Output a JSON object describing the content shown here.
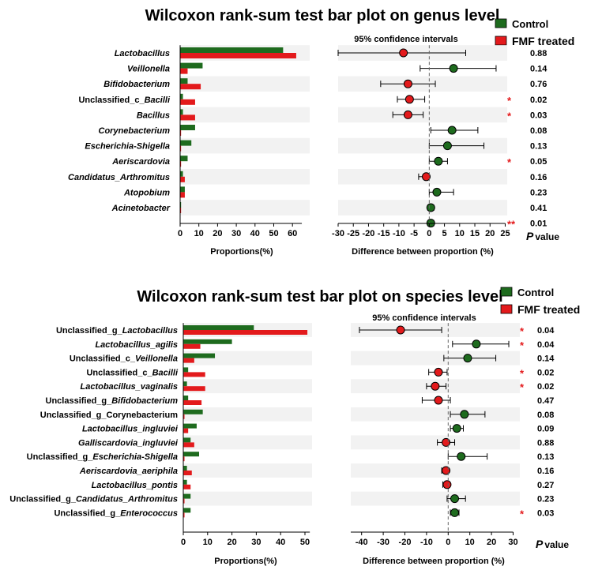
{
  "colors": {
    "control": "#1e6b1e",
    "treated": "#e31a1c",
    "stripe": "#f2f2f2",
    "star": "#e31a1c"
  },
  "legend": {
    "control": "Control",
    "treated": "FMF treated"
  },
  "ci_label": "95% confidence intervals",
  "x_label_left": "Proportions(%)",
  "x_label_right": "Difference between proportion (%)",
  "pvalue_label": {
    "p": "P",
    "rest": "value"
  },
  "chart_data": [
    {
      "type": "bar",
      "title": "Wilcoxon rank-sum test bar plot on genus level",
      "xlabel": "Proportions(%)",
      "xlim": [
        0,
        65
      ],
      "xticks": [
        0,
        10,
        20,
        30,
        40,
        50,
        60
      ],
      "rows": [
        {
          "label": [
            {
              "t": "Lactobacillus",
              "i": true
            }
          ],
          "control": 55,
          "treated": 62,
          "diff": -8.5,
          "lo": -30,
          "hi": 12,
          "p": "0.88",
          "star": ""
        },
        {
          "label": [
            {
              "t": "Veillonella",
              "i": true
            }
          ],
          "control": 12,
          "treated": 4,
          "diff": 8,
          "lo": -3,
          "hi": 22,
          "p": "0.14",
          "star": ""
        },
        {
          "label": [
            {
              "t": "Bifidobacterium",
              "i": true
            }
          ],
          "control": 4,
          "treated": 11,
          "diff": -7,
          "lo": -16,
          "hi": 2,
          "p": "0.76",
          "star": ""
        },
        {
          "label": [
            {
              "t": "Unclassified_c_",
              "i": false
            },
            {
              "t": "Bacilli",
              "i": true
            }
          ],
          "control": 1.5,
          "treated": 8,
          "diff": -6.5,
          "lo": -10.5,
          "hi": -1.5,
          "p": "0.02",
          "star": "*"
        },
        {
          "label": [
            {
              "t": "Bacillus",
              "i": true
            }
          ],
          "control": 1.5,
          "treated": 8,
          "diff": -7,
          "lo": -12,
          "hi": -2,
          "p": "0.03",
          "star": "*"
        },
        {
          "label": [
            {
              "t": "Corynebacterium",
              "i": true
            }
          ],
          "control": 8,
          "treated": 0.5,
          "diff": 7.5,
          "lo": 0.5,
          "hi": 16,
          "p": "0.08",
          "star": ""
        },
        {
          "label": [
            {
              "t": "Escherichia-Shigella",
              "i": true
            }
          ],
          "control": 6,
          "treated": 0.5,
          "diff": 6,
          "lo": 0,
          "hi": 18,
          "p": "0.13",
          "star": ""
        },
        {
          "label": [
            {
              "t": "Aeriscardovia",
              "i": true
            }
          ],
          "control": 4,
          "treated": 0.5,
          "diff": 3,
          "lo": 0,
          "hi": 6,
          "p": "0.05",
          "star": "*"
        },
        {
          "label": [
            {
              "t": "Candidatus_Arthromitus",
              "i": true
            }
          ],
          "control": 1.5,
          "treated": 2.5,
          "diff": -1,
          "lo": -3.5,
          "hi": 0,
          "p": "0.16",
          "star": ""
        },
        {
          "label": [
            {
              "t": "Atopobium",
              "i": true
            }
          ],
          "control": 2.5,
          "treated": 2.5,
          "diff": 2.5,
          "lo": 0,
          "hi": 8,
          "p": "0.23",
          "star": ""
        },
        {
          "label": [
            {
              "t": "Acinetobacter",
              "i": true
            }
          ],
          "control": 0.5,
          "treated": 0.5,
          "diff": 0.5,
          "lo": -0.5,
          "hi": 1.5,
          "p": "0.41",
          "star": ""
        },
        {
          "label": [],
          "control": 0,
          "treated": 0,
          "diff": 0.5,
          "lo": -0.5,
          "hi": 1.5,
          "p": "0.01",
          "star": "**"
        }
      ],
      "diff_xlim": [
        -30,
        25
      ],
      "diff_xticks": [
        -30,
        -25,
        -20,
        -15,
        -10,
        -5,
        0,
        5,
        10,
        15,
        20,
        25
      ]
    },
    {
      "type": "bar",
      "title": "Wilcoxon rank-sum test bar plot on species level",
      "xlabel": "Proportions(%)",
      "xlim": [
        0,
        52
      ],
      "xticks": [
        0,
        10,
        20,
        30,
        40,
        50
      ],
      "rows": [
        {
          "label": [
            {
              "t": "Unclassified_g_",
              "i": false
            },
            {
              "t": "Lactobacillus",
              "i": true
            }
          ],
          "control": 29,
          "treated": 51,
          "diff": -22,
          "lo": -41,
          "hi": -3,
          "p": "0.04",
          "star": "*"
        },
        {
          "label": [
            {
              "t": "Lactobacillus_agilis",
              "i": true
            }
          ],
          "control": 20,
          "treated": 7,
          "diff": 13,
          "lo": 2,
          "hi": 28,
          "p": "0.04",
          "star": "*"
        },
        {
          "label": [
            {
              "t": "Unclassified_c_",
              "i": false
            },
            {
              "t": "Veillonella",
              "i": true
            }
          ],
          "control": 13,
          "treated": 4.5,
          "diff": 9,
          "lo": -2,
          "hi": 22,
          "p": "0.14",
          "star": ""
        },
        {
          "label": [
            {
              "t": "Unclassified_c_",
              "i": false
            },
            {
              "t": "Bacilli",
              "i": true
            }
          ],
          "control": 2,
          "treated": 9,
          "diff": -4.5,
          "lo": -9,
          "hi": -0.5,
          "p": "0.02",
          "star": "*"
        },
        {
          "label": [
            {
              "t": "Lactobacillus_vaginalis",
              "i": true
            }
          ],
          "control": 1.5,
          "treated": 9,
          "diff": -6,
          "lo": -10,
          "hi": -1,
          "p": "0.02",
          "star": "*"
        },
        {
          "label": [
            {
              "t": "Unclassified_g_",
              "i": false
            },
            {
              "t": "Bifidobacterium",
              "i": true
            }
          ],
          "control": 2,
          "treated": 7.5,
          "diff": -4.5,
          "lo": -12,
          "hi": 1,
          "p": "0.47",
          "star": ""
        },
        {
          "label": [
            {
              "t": "Unclassified_g_Corynebacterium",
              "i": false
            }
          ],
          "control": 8,
          "treated": 0.5,
          "diff": 7.5,
          "lo": 1,
          "hi": 17,
          "p": "0.08",
          "star": ""
        },
        {
          "label": [
            {
              "t": "Lactobacillus_ingluviei",
              "i": true
            }
          ],
          "control": 5.5,
          "treated": 2,
          "diff": 4,
          "lo": 1,
          "hi": 7,
          "p": "0.09",
          "star": ""
        },
        {
          "label": [
            {
              "t": "Galliscardovia_ingluviei",
              "i": true
            }
          ],
          "control": 3,
          "treated": 4.5,
          "diff": -1,
          "lo": -5,
          "hi": 3,
          "p": "0.88",
          "star": ""
        },
        {
          "label": [
            {
              "t": "Unclassified_g_",
              "i": false
            },
            {
              "t": "Escherichia-Shigella",
              "i": true
            }
          ],
          "control": 6.5,
          "treated": 0.5,
          "diff": 6,
          "lo": 0,
          "hi": 18,
          "p": "0.13",
          "star": ""
        },
        {
          "label": [
            {
              "t": "Aeriscardovia_aeriphila",
              "i": true
            }
          ],
          "control": 1.5,
          "treated": 3.5,
          "diff": -1,
          "lo": -3,
          "hi": 0,
          "p": "0.16",
          "star": ""
        },
        {
          "label": [
            {
              "t": "Lactobacillus_pontis",
              "i": true
            }
          ],
          "control": 1.5,
          "treated": 3,
          "diff": -0.5,
          "lo": -2.5,
          "hi": 0.5,
          "p": "0.27",
          "star": ""
        },
        {
          "label": [
            {
              "t": "Unclassified_g_",
              "i": false
            },
            {
              "t": "Candidatus_Arthromitus",
              "i": true
            }
          ],
          "control": 3,
          "treated": 0.5,
          "diff": 3,
          "lo": -0.5,
          "hi": 8,
          "p": "0.23",
          "star": ""
        },
        {
          "label": [
            {
              "t": "Unclassified_g_",
              "i": false
            },
            {
              "t": "Enterococcus",
              "i": true
            }
          ],
          "control": 3,
          "treated": 0.5,
          "diff": 3,
          "lo": 1,
          "hi": 5,
          "p": "0.03",
          "star": "*"
        }
      ],
      "diff_xlim": [
        -45,
        30
      ],
      "diff_xticks": [
        -40,
        -30,
        -20,
        -10,
        0,
        10,
        20,
        30
      ]
    }
  ]
}
